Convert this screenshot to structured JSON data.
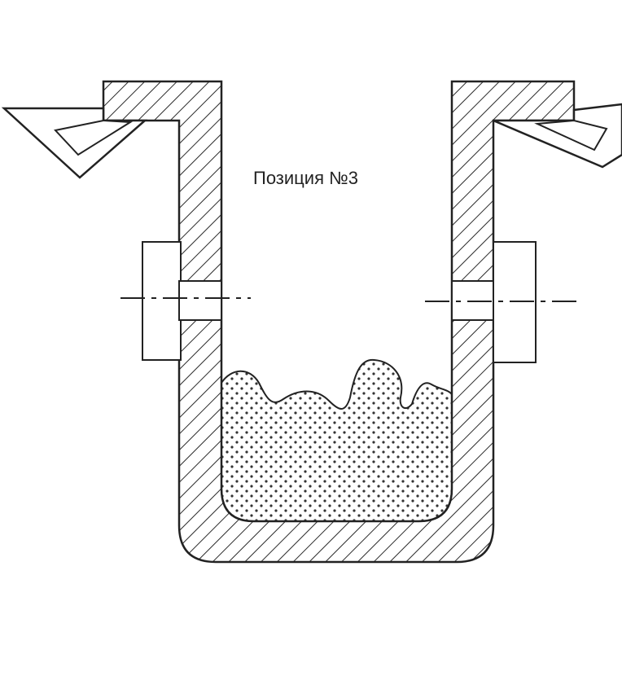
{
  "diagram": {
    "caption": "Позиция №3",
    "parts": {
      "ladle": "ladle-wall",
      "melt": "melt-charge",
      "left_trunnion": "trunnion-left",
      "right_trunnion": "trunnion-right",
      "left_hook": "lifting-hook-left",
      "right_hook": "lifting-hook-right"
    },
    "colors": {
      "stroke": "#222222",
      "hatch": "#2a2a2a",
      "dots": "#333333",
      "background": "#ffffff"
    }
  }
}
